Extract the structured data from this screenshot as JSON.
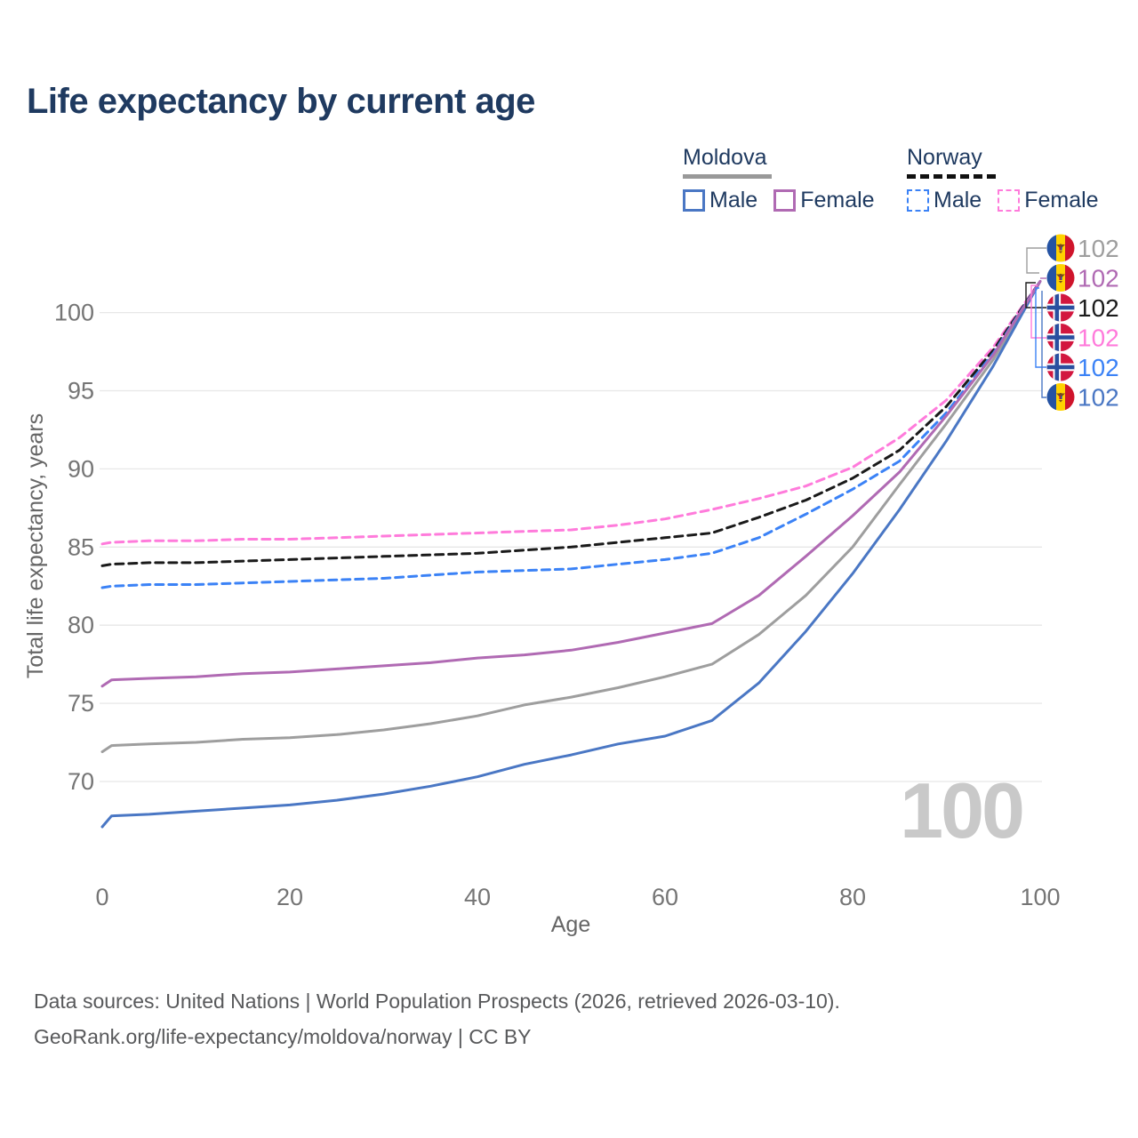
{
  "title": "Life expectancy by current age",
  "legend": {
    "groups": [
      {
        "country": "Moldova",
        "line_style": "solid",
        "underline_color": "#999999",
        "items": [
          {
            "label": "Male",
            "color": "#4a77c4"
          },
          {
            "label": "Female",
            "color": "#b06ab3"
          }
        ]
      },
      {
        "country": "Norway",
        "line_style": "dashed",
        "underline_color": "#111111",
        "items": [
          {
            "label": "Male",
            "color": "#3b82f6"
          },
          {
            "label": "Female",
            "color": "#ff7bdb"
          }
        ]
      }
    ]
  },
  "watermark_age": "100",
  "footer": {
    "line1": "Data sources: United Nations | World Population Prospects (2026, retrieved 2026-03-10).",
    "line2": "GeoRank.org/life-expectancy/moldova/norway | CC BY"
  },
  "chart_data": {
    "type": "line",
    "title": "Life expectancy by current age",
    "xlabel": "Age",
    "ylabel": "Total life expectancy, years",
    "xlim": [
      0,
      100
    ],
    "ylim": [
      66,
      103
    ],
    "xticks": [
      0,
      20,
      40,
      60,
      80,
      100
    ],
    "yticks": [
      70,
      75,
      80,
      85,
      90,
      95,
      100
    ],
    "grid": "horizontal",
    "legend_position": "top-right",
    "x": [
      0,
      1,
      5,
      10,
      15,
      20,
      25,
      30,
      35,
      40,
      45,
      50,
      55,
      60,
      65,
      70,
      75,
      80,
      85,
      90,
      95,
      100
    ],
    "series": [
      {
        "id": "norway-female",
        "name": "Norway Female",
        "country": "norway",
        "sex": "female",
        "color": "#ff7bdb",
        "dashed": true,
        "end_label": "102",
        "end_row": 3,
        "values": [
          85.2,
          85.3,
          85.4,
          85.4,
          85.5,
          85.5,
          85.6,
          85.7,
          85.8,
          85.9,
          86.0,
          86.1,
          86.4,
          86.8,
          87.4,
          88.1,
          88.9,
          90.1,
          92.0,
          94.4,
          97.8,
          102
        ]
      },
      {
        "id": "norway-total",
        "name": "Norway Both sexes",
        "country": "norway",
        "sex": "total",
        "color": "#1a1a1a",
        "dashed": true,
        "end_label": "102",
        "end_row": 2,
        "values": [
          83.8,
          83.9,
          84.0,
          84.0,
          84.1,
          84.2,
          84.3,
          84.4,
          84.5,
          84.6,
          84.8,
          85.0,
          85.3,
          85.6,
          85.9,
          86.9,
          88.0,
          89.4,
          91.2,
          94.0,
          97.6,
          102
        ]
      },
      {
        "id": "norway-male",
        "name": "Norway Male",
        "country": "norway",
        "sex": "male",
        "color": "#3b82f6",
        "dashed": true,
        "end_label": "102",
        "end_row": 4,
        "values": [
          82.4,
          82.5,
          82.6,
          82.6,
          82.7,
          82.8,
          82.9,
          83.0,
          83.2,
          83.4,
          83.5,
          83.6,
          83.9,
          84.2,
          84.6,
          85.6,
          87.1,
          88.7,
          90.5,
          93.6,
          97.4,
          102
        ]
      },
      {
        "id": "moldova-total",
        "name": "Moldova Both sexes",
        "country": "moldova",
        "sex": "total",
        "color": "#9e9e9e",
        "dashed": false,
        "end_label": "102",
        "end_row": 0,
        "values": [
          71.9,
          72.3,
          72.4,
          72.5,
          72.7,
          72.8,
          73.0,
          73.3,
          73.7,
          74.2,
          74.9,
          75.4,
          76.0,
          76.7,
          77.5,
          79.4,
          81.9,
          85.0,
          89.0,
          92.9,
          97.0,
          102
        ]
      },
      {
        "id": "moldova-male",
        "name": "Moldova Male",
        "country": "moldova",
        "sex": "male",
        "color": "#4a77c4",
        "dashed": false,
        "end_label": "102",
        "end_row": 5,
        "values": [
          67.1,
          67.8,
          67.9,
          68.1,
          68.3,
          68.5,
          68.8,
          69.2,
          69.7,
          70.3,
          71.1,
          71.7,
          72.4,
          72.9,
          73.9,
          76.3,
          79.6,
          83.3,
          87.4,
          91.8,
          96.6,
          102
        ]
      },
      {
        "id": "moldova-female",
        "name": "Moldova Female",
        "country": "moldova",
        "sex": "female",
        "color": "#b06ab3",
        "dashed": false,
        "end_label": "102",
        "end_row": 1,
        "values": [
          76.1,
          76.5,
          76.6,
          76.7,
          76.9,
          77.0,
          77.2,
          77.4,
          77.6,
          77.9,
          78.1,
          78.4,
          78.9,
          79.5,
          80.1,
          81.9,
          84.4,
          87.0,
          89.8,
          93.4,
          97.3,
          102
        ]
      }
    ],
    "end_labels_note": "All six series converge to 102 total years at current age 100"
  }
}
